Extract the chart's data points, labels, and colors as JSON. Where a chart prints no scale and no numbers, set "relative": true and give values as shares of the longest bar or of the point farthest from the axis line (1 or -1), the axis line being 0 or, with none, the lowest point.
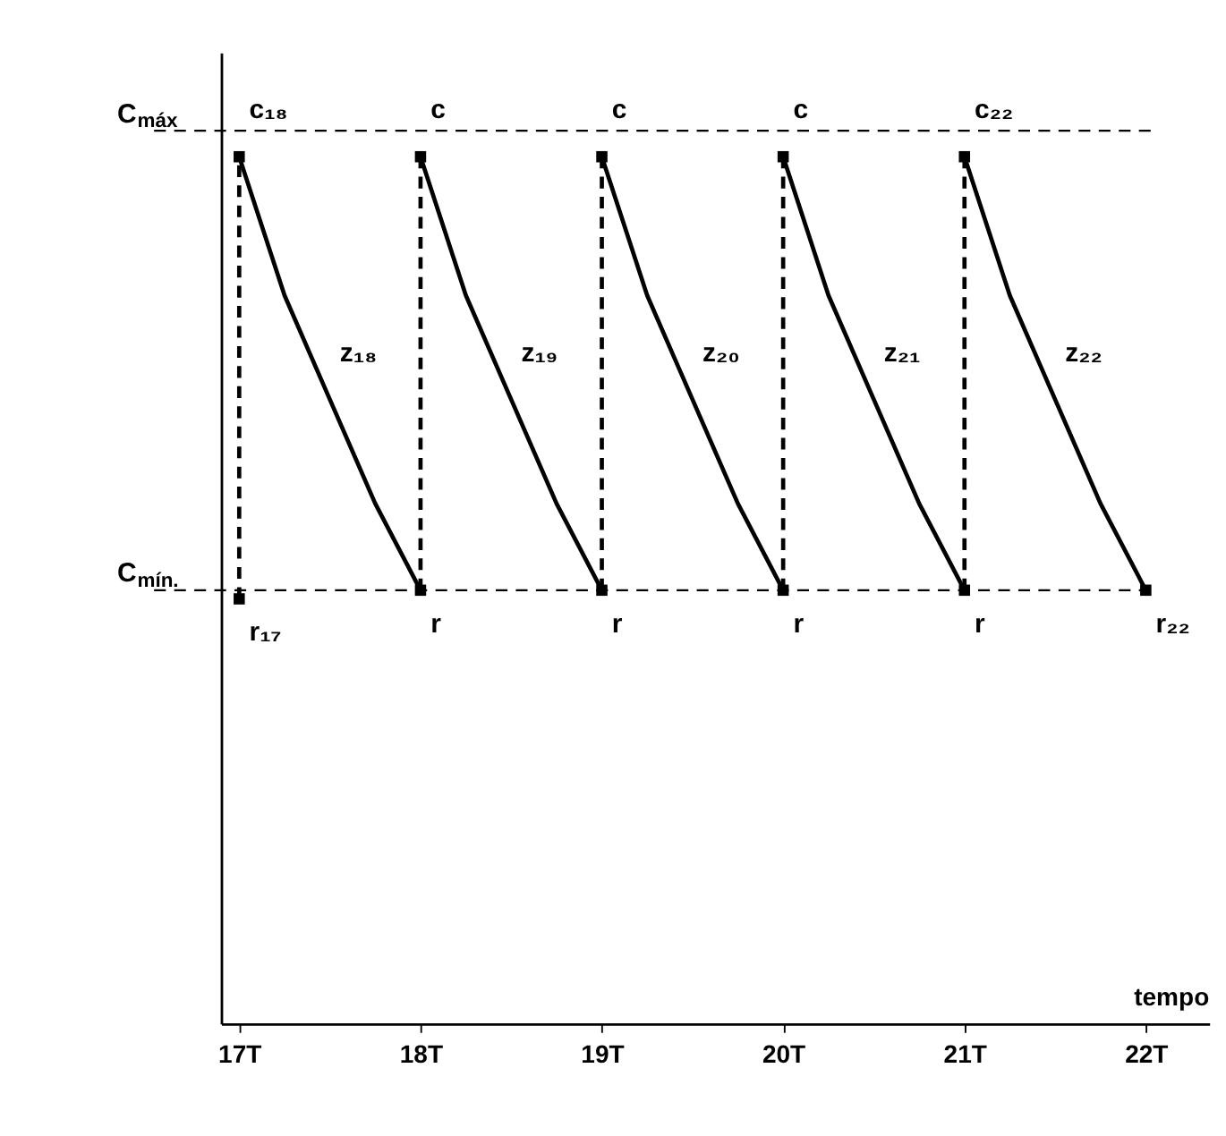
{
  "chart_data": {
    "type": "line",
    "relative": true,
    "xlabel": "tempo",
    "xlim": [
      16.9,
      22.35
    ],
    "xticks": [
      {
        "value": 17,
        "label": "17T"
      },
      {
        "value": 18,
        "label": "18T"
      },
      {
        "value": 19,
        "label": "19T"
      },
      {
        "value": 20,
        "label": "20T"
      },
      {
        "value": 21,
        "label": "21T"
      },
      {
        "value": 22,
        "label": "22T"
      }
    ],
    "tick_labels": "x",
    "grid": false,
    "series": [
      {
        "color": "#000000",
        "line_style": "solid",
        "marker": "none",
        "x": [
          17,
          17.25,
          17.5,
          17.75,
          18
        ],
        "values": [
          1,
          0.84,
          0.72,
          0.6,
          0.5
        ]
      },
      {
        "color": "#000000",
        "line_style": "solid",
        "marker": "none",
        "x": [
          18,
          18.25,
          18.5,
          18.75,
          19
        ],
        "values": [
          1,
          0.84,
          0.72,
          0.6,
          0.5
        ]
      },
      {
        "color": "#000000",
        "line_style": "solid",
        "marker": "none",
        "x": [
          19,
          19.25,
          19.5,
          19.75,
          20
        ],
        "values": [
          1,
          0.84,
          0.72,
          0.6,
          0.5
        ]
      },
      {
        "color": "#000000",
        "line_style": "solid",
        "marker": "none",
        "x": [
          20,
          20.25,
          20.5,
          20.75,
          21
        ],
        "values": [
          1,
          0.84,
          0.72,
          0.6,
          0.5
        ]
      },
      {
        "color": "#000000",
        "line_style": "solid",
        "marker": "none",
        "x": [
          21,
          21.25,
          21.5,
          21.75,
          22
        ],
        "values": [
          1,
          0.84,
          0.72,
          0.6,
          0.5
        ]
      },
      {
        "color": "#000000",
        "line_style": "dashed",
        "marker": "none",
        "x": [
          17,
          17
        ],
        "values": [
          0.49,
          1
        ]
      },
      {
        "color": "#000000",
        "line_style": "dashed",
        "marker": "none",
        "x": [
          18,
          18
        ],
        "values": [
          0.5,
          1
        ]
      },
      {
        "color": "#000000",
        "line_style": "dashed",
        "marker": "none",
        "x": [
          19,
          19
        ],
        "values": [
          0.5,
          1
        ]
      },
      {
        "color": "#000000",
        "line_style": "dashed",
        "marker": "none",
        "x": [
          20,
          20
        ],
        "values": [
          0.5,
          1
        ]
      },
      {
        "color": "#000000",
        "line_style": "dashed",
        "marker": "none",
        "x": [
          21,
          21
        ],
        "values": [
          0.5,
          1
        ]
      },
      {
        "type": "scatter",
        "color": "#000000",
        "marker": "square",
        "x": [
          17,
          17,
          18,
          18,
          19,
          19,
          20,
          20,
          21,
          21,
          22
        ],
        "values": [
          0.49,
          1,
          0.5,
          1,
          0.5,
          1,
          0.5,
          1,
          0.5,
          1,
          0.5
        ]
      }
    ],
    "ref_lines": [
      {
        "axis": "y",
        "value": 1.03,
        "label": "C$_{máx}$",
        "line_style": "dashed",
        "color": "#000000"
      },
      {
        "axis": "y",
        "value": 0.5,
        "label": "C$_{mín.}$",
        "line_style": "dashed",
        "color": "#000000"
      }
    ],
    "annotations": [
      {
        "text": "c₁₈",
        "x": 17,
        "y": 1
      },
      {
        "text": "c",
        "x": 18,
        "y": 1
      },
      {
        "text": "c",
        "x": 19,
        "y": 1
      },
      {
        "text": "c",
        "x": 20,
        "y": 1
      },
      {
        "text": "c₂₂",
        "x": 21,
        "y": 1
      },
      {
        "text": "r₁₇",
        "x": 17,
        "y": 0.49
      },
      {
        "text": "r",
        "x": 18,
        "y": 0.5
      },
      {
        "text": "r",
        "x": 19,
        "y": 0.5
      },
      {
        "text": "r",
        "x": 20,
        "y": 0.5
      },
      {
        "text": "r",
        "x": 21,
        "y": 0.5
      },
      {
        "text": "r₂₂",
        "x": 22,
        "y": 0.5
      },
      {
        "text": "z₁₈",
        "x": 17.5,
        "y": 0.72
      },
      {
        "text": "z₁₉",
        "x": 18.5,
        "y": 0.72
      },
      {
        "text": "z₂₀",
        "x": 19.5,
        "y": 0.72
      },
      {
        "text": "z₂₁",
        "x": 20.5,
        "y": 0.72
      },
      {
        "text": "z₂₂",
        "x": 21.5,
        "y": 0.72
      }
    ]
  }
}
